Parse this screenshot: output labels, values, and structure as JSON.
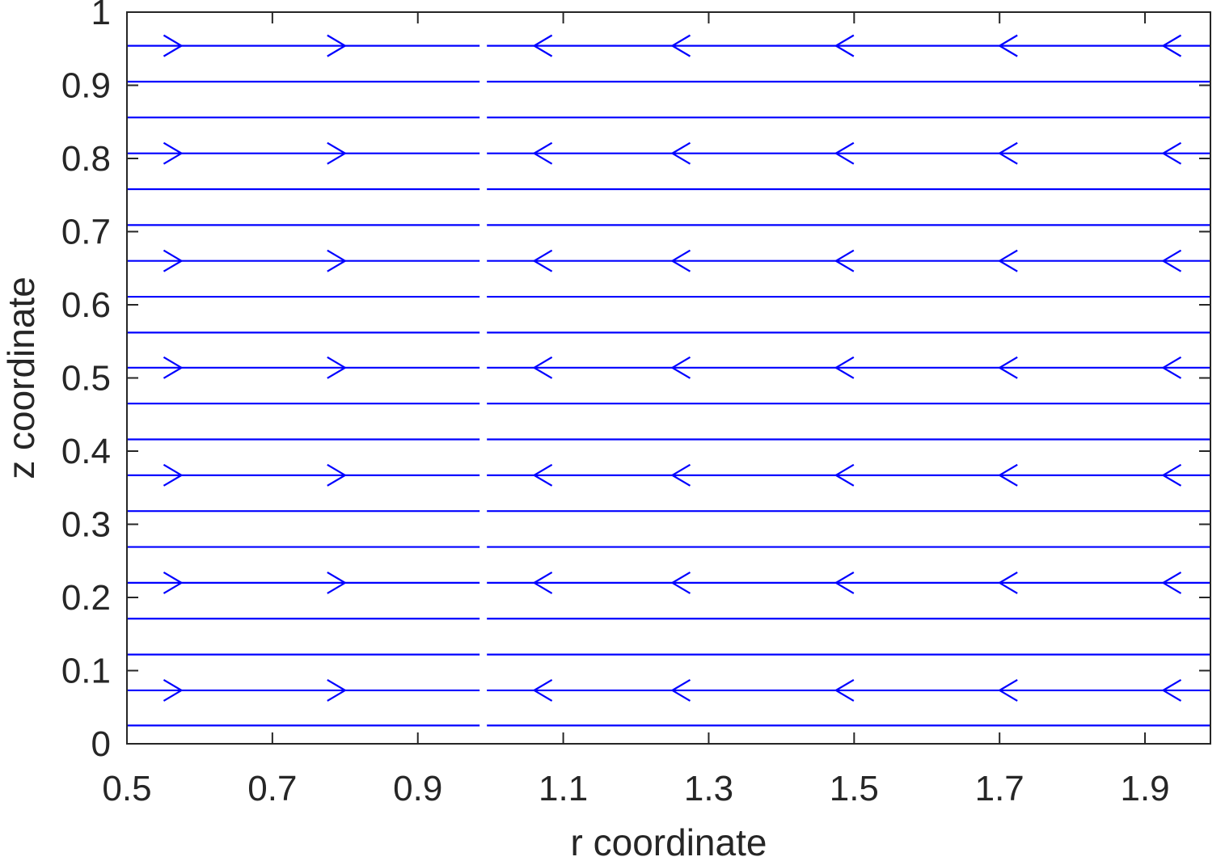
{
  "chart_data": {
    "type": "streamline",
    "title": "",
    "xlabel": "r coordinate",
    "ylabel": "z coordinate",
    "xlim": [
      0.5,
      1.99
    ],
    "ylim": [
      0,
      1
    ],
    "xticks": [
      0.5,
      0.7,
      0.9,
      1.1,
      1.3,
      1.5,
      1.7,
      1.9
    ],
    "xtick_labels": [
      "0.5",
      "0.7",
      "0.9",
      "1.1",
      "1.3",
      "1.5",
      "1.7",
      "1.9"
    ],
    "yticks": [
      0,
      0.1,
      0.2,
      0.3,
      0.4,
      0.5,
      0.6,
      0.7,
      0.8,
      0.9,
      1
    ],
    "ytick_labels": [
      "0",
      "0.1",
      "0.2",
      "0.3",
      "0.4",
      "0.5",
      "0.6",
      "0.7",
      "0.8",
      "0.9",
      "1"
    ],
    "grid": false,
    "box": true,
    "line_color": "#0000ff",
    "axis_color": "#262626",
    "streamline_gap_r": [
      0.985,
      0.995
    ],
    "streamline_z": [
      0.025,
      0.073,
      0.122,
      0.171,
      0.22,
      0.269,
      0.318,
      0.367,
      0.416,
      0.465,
      0.514,
      0.562,
      0.611,
      0.66,
      0.709,
      0.758,
      0.807,
      0.856,
      0.905,
      0.954
    ],
    "arrow_rows_z": [
      0.073,
      0.22,
      0.367,
      0.514,
      0.66,
      0.807,
      0.954
    ],
    "arrows": [
      {
        "r": 0.575,
        "direction": "right"
      },
      {
        "r": 0.8,
        "direction": "right"
      },
      {
        "r": 1.06,
        "direction": "left"
      },
      {
        "r": 1.25,
        "direction": "left"
      },
      {
        "r": 1.475,
        "direction": "left"
      },
      {
        "r": 1.7,
        "direction": "left"
      },
      {
        "r": 1.925,
        "direction": "left"
      }
    ]
  }
}
